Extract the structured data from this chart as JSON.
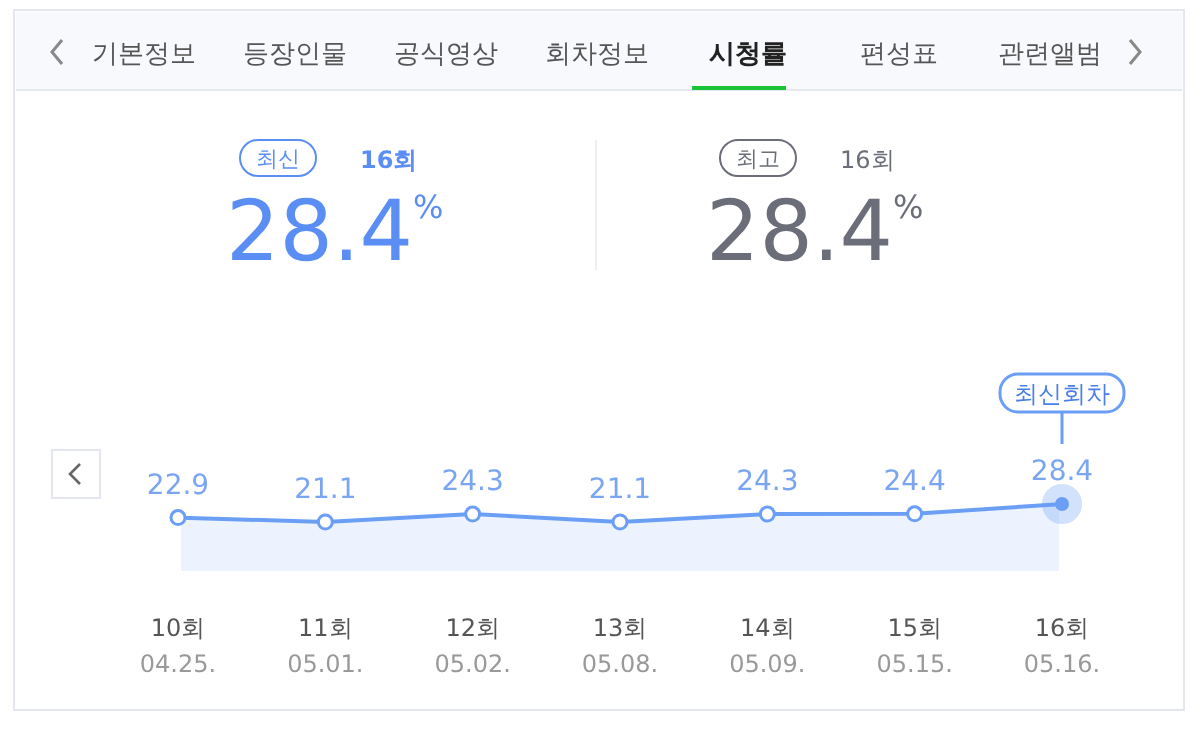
{
  "chart_data": {
    "type": "area",
    "categories": [
      "10회\n04.25.",
      "11회\n05.01.",
      "12회\n05.02.",
      "13회\n05.08.",
      "14회\n05.09.",
      "15회\n05.15.",
      "16회\n05.16."
    ],
    "series": [
      {
        "color": "#6b9ef5",
        "values": [
          22.9,
          21.1,
          24.3,
          21.1,
          24.3,
          24.4,
          28.4
        ]
      }
    ],
    "data_labels": true,
    "marker": "circle",
    "annotations": [
      "기본정보",
      "등장인물",
      "공식영상",
      "회차정보",
      "시청률",
      "편성표",
      "관련앨범",
      "최신",
      "16회",
      "28.4$^{%}$",
      "최고",
      "16회",
      "28.4$^{%}$",
      "최신회차"
    ]
  }
}
